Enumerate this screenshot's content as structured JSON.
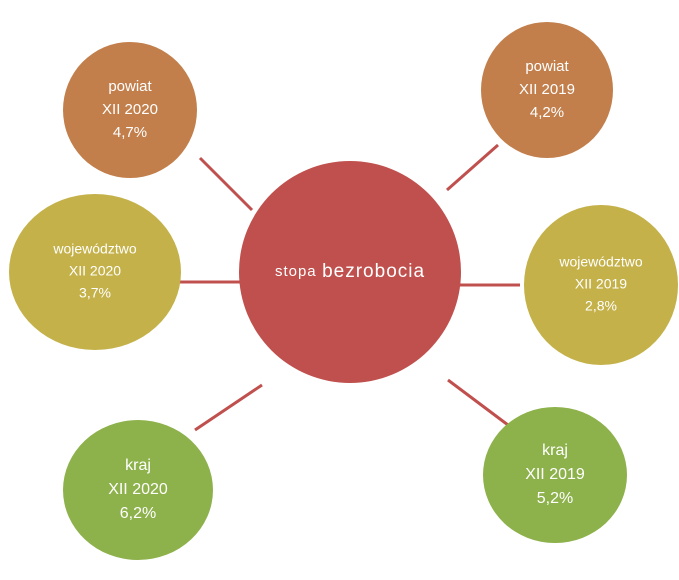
{
  "center": {
    "words": [
      "stopa",
      "bezrobocia"
    ]
  },
  "nodes": [
    {
      "lines": [
        "powiat",
        "XII 2020",
        "4,7%"
      ]
    },
    {
      "lines": [
        "powiat",
        "XII 2019",
        "4,2%"
      ]
    },
    {
      "lines": [
        "województwo",
        "XII 2020",
        "3,7%"
      ]
    },
    {
      "lines": [
        "województwo",
        "XII 2019",
        "2,8%"
      ]
    },
    {
      "lines": [
        "kraj",
        "XII 2020",
        "6,2%"
      ]
    },
    {
      "lines": [
        "kraj",
        "XII 2019",
        "5,2%"
      ]
    }
  ]
}
